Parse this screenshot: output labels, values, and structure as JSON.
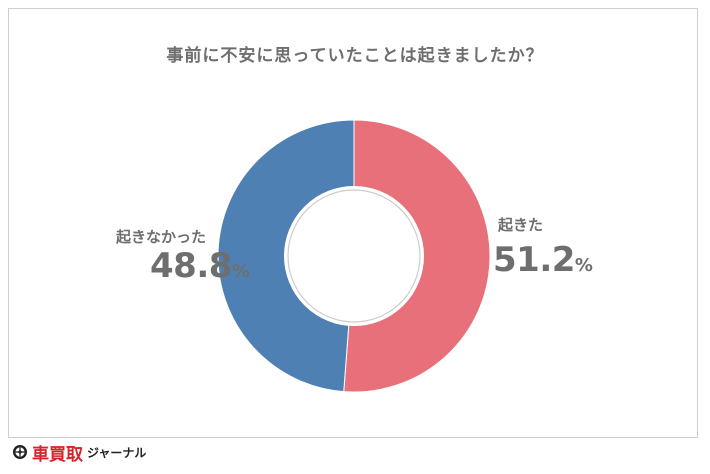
{
  "chart_data": {
    "type": "pie",
    "title": "事前に不安に思っていたことは起きましたか？",
    "categories": [
      "起きた",
      "起きなかった"
    ],
    "values": [
      51.2,
      48.8
    ],
    "value_labels": [
      "51.2",
      "48.8"
    ],
    "unit": "%",
    "colors": [
      "#e8707a",
      "#4f80b3"
    ],
    "donut": true,
    "legend": "none"
  },
  "brand": {
    "name_kanji": "車買取",
    "name_kana": "ジャーナル",
    "color": "#d8232a",
    "icon": "wheel-icon"
  }
}
